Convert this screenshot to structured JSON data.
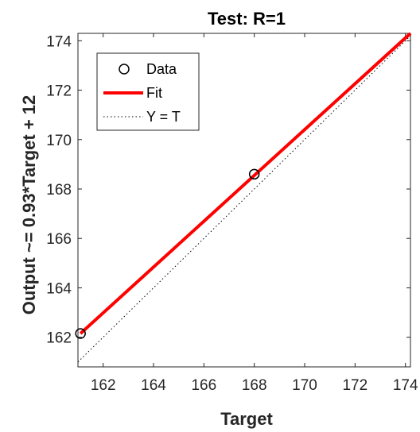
{
  "chart_data": {
    "type": "scatter",
    "title": "Test: R=1",
    "xlabel": "Target",
    "ylabel": "Output ~= 0.93*Target + 12",
    "xlim": [
      161,
      174.2
    ],
    "ylim": [
      160.8,
      174.3
    ],
    "x_ticks": [
      162,
      164,
      166,
      168,
      170,
      172,
      174
    ],
    "y_ticks": [
      162,
      164,
      166,
      168,
      170,
      172,
      174
    ],
    "grid": false,
    "legend_position": "top-left",
    "series": [
      {
        "name": "Data",
        "kind": "markers",
        "marker": "circle",
        "color": "#000000",
        "points": [
          [
            161.1,
            162.15
          ],
          [
            168.0,
            168.6
          ]
        ]
      },
      {
        "name": "Fit",
        "kind": "line",
        "color": "#ff0000",
        "points": [
          [
            161.1,
            162.15
          ],
          [
            174.2,
            174.3
          ]
        ]
      },
      {
        "name": "Y = T",
        "kind": "line",
        "style": "dotted",
        "color": "#000000",
        "points": [
          [
            161,
            161
          ],
          [
            174.2,
            174.2
          ]
        ]
      }
    ]
  }
}
